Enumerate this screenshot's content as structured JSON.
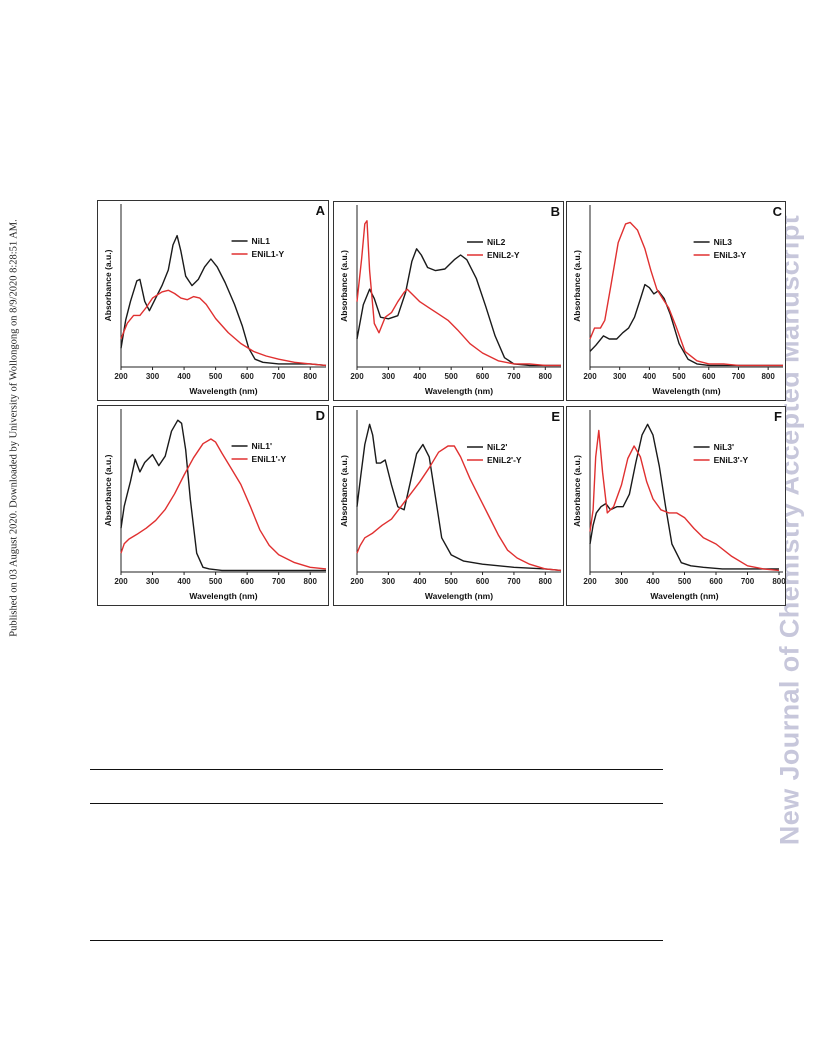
{
  "side_note": "Published on 03 August 2020. Downloaded by University of Wollongong on 8/9/2020 8:28:51 AM.",
  "watermark": "New Journal of Chemistry Accepted Manuscript",
  "colors": {
    "complex": "#1a1a1a",
    "encapsulated": "#e03030"
  },
  "chart_data": [
    {
      "type": "line",
      "panel_label": "A",
      "xlabel": "Wavelength (nm)",
      "ylabel": "Absorbance (a.u.)",
      "xlim": [
        200,
        850
      ],
      "ylim": [
        0,
        1
      ],
      "xticks": [
        200,
        300,
        400,
        500,
        600,
        700,
        800
      ],
      "legend_position": "top-right",
      "series": [
        {
          "name": "NiL1",
          "color": "#1a1a1a",
          "x": [
            200,
            215,
            230,
            250,
            260,
            275,
            290,
            310,
            330,
            350,
            365,
            378,
            390,
            405,
            425,
            445,
            465,
            485,
            505,
            530,
            560,
            585,
            605,
            625,
            650,
            700,
            750,
            800,
            850
          ],
          "y": [
            0.12,
            0.3,
            0.42,
            0.55,
            0.56,
            0.42,
            0.36,
            0.44,
            0.52,
            0.62,
            0.78,
            0.84,
            0.74,
            0.58,
            0.52,
            0.56,
            0.64,
            0.69,
            0.64,
            0.54,
            0.4,
            0.26,
            0.12,
            0.05,
            0.03,
            0.02,
            0.02,
            0.02,
            0.01
          ]
        },
        {
          "name": "ENiL1-Y",
          "color": "#e03030",
          "x": [
            200,
            220,
            240,
            260,
            280,
            300,
            330,
            350,
            370,
            390,
            410,
            430,
            450,
            470,
            500,
            540,
            580,
            620,
            660,
            700,
            750,
            800,
            850
          ],
          "y": [
            0.18,
            0.28,
            0.33,
            0.33,
            0.38,
            0.44,
            0.48,
            0.49,
            0.47,
            0.44,
            0.43,
            0.45,
            0.44,
            0.4,
            0.31,
            0.22,
            0.15,
            0.1,
            0.07,
            0.05,
            0.03,
            0.02,
            0.01
          ]
        }
      ]
    },
    {
      "type": "line",
      "panel_label": "B",
      "xlabel": "Wavelength (nm)",
      "ylabel": "Absorbance (a.u.)",
      "xlim": [
        200,
        850
      ],
      "ylim": [
        0,
        1
      ],
      "xticks": [
        200,
        300,
        400,
        500,
        600,
        700,
        800
      ],
      "legend_position": "top-right",
      "series": [
        {
          "name": "NiL2",
          "color": "#1a1a1a",
          "x": [
            200,
            220,
            240,
            255,
            275,
            300,
            330,
            355,
            375,
            390,
            405,
            425,
            450,
            480,
            510,
            530,
            550,
            580,
            610,
            640,
            670,
            700,
            750,
            800,
            850
          ],
          "y": [
            0.18,
            0.4,
            0.5,
            0.44,
            0.32,
            0.31,
            0.33,
            0.48,
            0.68,
            0.76,
            0.72,
            0.64,
            0.62,
            0.63,
            0.69,
            0.72,
            0.69,
            0.57,
            0.39,
            0.2,
            0.06,
            0.02,
            0.01,
            0.01,
            0.01
          ]
        },
        {
          "name": "ENiL2-Y",
          "color": "#e03030",
          "x": [
            200,
            215,
            225,
            232,
            240,
            255,
            270,
            290,
            310,
            330,
            350,
            360,
            375,
            400,
            430,
            460,
            490,
            520,
            560,
            600,
            650,
            700,
            750,
            800,
            850
          ],
          "y": [
            0.42,
            0.7,
            0.92,
            0.94,
            0.62,
            0.28,
            0.22,
            0.32,
            0.35,
            0.42,
            0.48,
            0.5,
            0.47,
            0.42,
            0.38,
            0.34,
            0.3,
            0.24,
            0.15,
            0.09,
            0.04,
            0.02,
            0.02,
            0.01,
            0.01
          ]
        }
      ]
    },
    {
      "type": "line",
      "panel_label": "C",
      "xlabel": "Wavelength (nm)",
      "ylabel": "Absorbance (a.u.)",
      "xlim": [
        200,
        850
      ],
      "ylim": [
        0,
        1
      ],
      "xticks": [
        200,
        300,
        400,
        500,
        600,
        700,
        800
      ],
      "legend_position": "top-right",
      "series": [
        {
          "name": "NiL3",
          "color": "#1a1a1a",
          "x": [
            200,
            220,
            245,
            265,
            290,
            310,
            330,
            350,
            370,
            385,
            400,
            415,
            430,
            450,
            470,
            500,
            530,
            560,
            600,
            650,
            700,
            750,
            800,
            850
          ],
          "y": [
            0.1,
            0.14,
            0.2,
            0.18,
            0.18,
            0.22,
            0.25,
            0.32,
            0.44,
            0.53,
            0.51,
            0.47,
            0.49,
            0.44,
            0.34,
            0.15,
            0.05,
            0.02,
            0.01,
            0.01,
            0.01,
            0.01,
            0.01,
            0.01
          ]
        },
        {
          "name": "ENiL3-Y",
          "color": "#e03030",
          "x": [
            200,
            215,
            235,
            250,
            270,
            295,
            320,
            335,
            360,
            385,
            405,
            425,
            445,
            465,
            490,
            520,
            560,
            600,
            650,
            700,
            750,
            800,
            850
          ],
          "y": [
            0.18,
            0.25,
            0.25,
            0.3,
            0.52,
            0.8,
            0.92,
            0.93,
            0.88,
            0.76,
            0.62,
            0.5,
            0.44,
            0.38,
            0.26,
            0.1,
            0.04,
            0.02,
            0.02,
            0.01,
            0.01,
            0.01,
            0.01
          ]
        }
      ]
    },
    {
      "type": "line",
      "panel_label": "D",
      "xlabel": "Wavelength (nm)",
      "ylabel": "Absorbance (a.u.)",
      "xlim": [
        200,
        850
      ],
      "ylim": [
        0,
        1
      ],
      "xticks": [
        200,
        300,
        400,
        500,
        600,
        700,
        800
      ],
      "legend_position": "top-right",
      "series": [
        {
          "name": "NiL1'",
          "color": "#1a1a1a",
          "x": [
            200,
            210,
            220,
            230,
            245,
            260,
            275,
            300,
            320,
            340,
            360,
            380,
            392,
            405,
            420,
            440,
            460,
            480,
            520,
            600,
            700,
            800,
            850
          ],
          "y": [
            0.28,
            0.42,
            0.5,
            0.58,
            0.72,
            0.64,
            0.7,
            0.75,
            0.68,
            0.74,
            0.9,
            0.97,
            0.95,
            0.78,
            0.46,
            0.12,
            0.03,
            0.02,
            0.01,
            0.01,
            0.01,
            0.01,
            0.01
          ]
        },
        {
          "name": "ENiL1'-Y",
          "color": "#e03030",
          "x": [
            200,
            210,
            225,
            250,
            280,
            310,
            340,
            370,
            400,
            430,
            460,
            485,
            500,
            520,
            550,
            580,
            610,
            640,
            670,
            700,
            750,
            800,
            850
          ],
          "y": [
            0.12,
            0.18,
            0.21,
            0.24,
            0.28,
            0.33,
            0.4,
            0.5,
            0.62,
            0.73,
            0.82,
            0.85,
            0.83,
            0.76,
            0.66,
            0.56,
            0.42,
            0.27,
            0.17,
            0.11,
            0.06,
            0.03,
            0.02
          ]
        }
      ]
    },
    {
      "type": "line",
      "panel_label": "E",
      "xlabel": "Wavelength (nm)",
      "ylabel": "Absorbance (a.u.)",
      "xlim": [
        200,
        850
      ],
      "ylim": [
        0,
        1
      ],
      "xticks": [
        200,
        300,
        400,
        500,
        600,
        700,
        800
      ],
      "legend_position": "top-right",
      "series": [
        {
          "name": "NiL2'",
          "color": "#1a1a1a",
          "x": [
            200,
            212,
            225,
            240,
            250,
            262,
            275,
            290,
            310,
            330,
            350,
            370,
            390,
            410,
            430,
            450,
            470,
            500,
            540,
            600,
            700,
            800,
            850
          ],
          "y": [
            0.42,
            0.62,
            0.82,
            0.95,
            0.88,
            0.7,
            0.7,
            0.72,
            0.56,
            0.42,
            0.4,
            0.58,
            0.76,
            0.82,
            0.74,
            0.48,
            0.22,
            0.11,
            0.07,
            0.05,
            0.03,
            0.02,
            0.01
          ]
        },
        {
          "name": "ENiL2'-Y",
          "color": "#e03030",
          "x": [
            200,
            210,
            225,
            250,
            280,
            310,
            340,
            370,
            400,
            430,
            460,
            490,
            510,
            530,
            560,
            590,
            620,
            650,
            680,
            710,
            750,
            800,
            850
          ],
          "y": [
            0.12,
            0.17,
            0.22,
            0.25,
            0.3,
            0.34,
            0.42,
            0.5,
            0.58,
            0.67,
            0.77,
            0.81,
            0.81,
            0.74,
            0.6,
            0.48,
            0.36,
            0.24,
            0.14,
            0.09,
            0.05,
            0.02,
            0.01
          ]
        }
      ]
    },
    {
      "type": "line",
      "panel_label": "F",
      "xlabel": "Wavelength (nm)",
      "ylabel": "Absorbance (a.u.)",
      "xlim": [
        200,
        800
      ],
      "ylim": [
        0,
        1
      ],
      "xticks": [
        200,
        300,
        400,
        500,
        600,
        700,
        800
      ],
      "legend_position": "top-right",
      "series": [
        {
          "name": "NiL3'",
          "color": "#1a1a1a",
          "x": [
            200,
            210,
            220,
            235,
            250,
            265,
            285,
            305,
            325,
            345,
            365,
            383,
            400,
            420,
            440,
            460,
            490,
            520,
            560,
            620,
            700,
            800
          ],
          "y": [
            0.18,
            0.3,
            0.38,
            0.42,
            0.44,
            0.4,
            0.42,
            0.42,
            0.5,
            0.7,
            0.88,
            0.95,
            0.88,
            0.68,
            0.42,
            0.18,
            0.06,
            0.04,
            0.03,
            0.02,
            0.02,
            0.02
          ]
        },
        {
          "name": "ENiL3'-Y",
          "color": "#e03030",
          "x": [
            200,
            210,
            218,
            228,
            240,
            255,
            275,
            300,
            320,
            340,
            360,
            380,
            400,
            425,
            450,
            475,
            500,
            530,
            560,
            600,
            650,
            700,
            750,
            800
          ],
          "y": [
            0.26,
            0.4,
            0.74,
            0.91,
            0.64,
            0.38,
            0.42,
            0.56,
            0.73,
            0.81,
            0.74,
            0.58,
            0.47,
            0.4,
            0.38,
            0.38,
            0.35,
            0.28,
            0.22,
            0.18,
            0.1,
            0.04,
            0.02,
            0.01
          ]
        }
      ]
    }
  ]
}
